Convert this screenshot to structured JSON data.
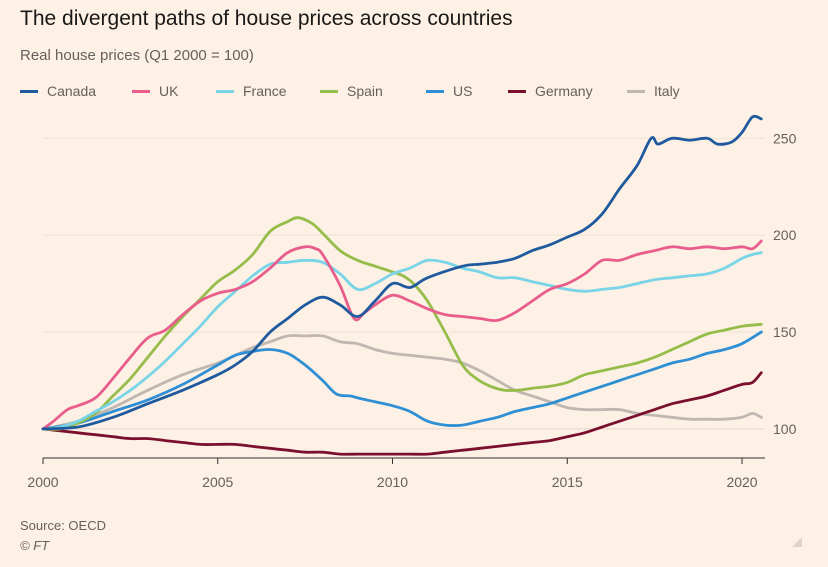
{
  "title": "The divergent paths of house prices across countries",
  "subtitle": "Real house prices (Q1 2000 = 100)",
  "source": "Source: OECD",
  "copyright": "© FT",
  "chart_data": {
    "type": "line",
    "title": "The divergent paths of house prices across countries",
    "subtitle": "Real house prices (Q1 2000 = 100)",
    "xlim": [
      2000,
      2020.6
    ],
    "ylim": [
      85,
      262
    ],
    "xticks": [
      2000,
      2005,
      2010,
      2015,
      2020
    ],
    "yticks": [
      100,
      150,
      200,
      250
    ],
    "grid": true,
    "legend_position": "top",
    "series": [
      {
        "name": "Canada",
        "color": "#1f5a9e",
        "points": [
          [
            2000,
            100
          ],
          [
            2001,
            101
          ],
          [
            2002,
            106
          ],
          [
            2003,
            113
          ],
          [
            2004,
            120
          ],
          [
            2005,
            128
          ],
          [
            2005.5,
            133
          ],
          [
            2006,
            140
          ],
          [
            2006.5,
            150
          ],
          [
            2007,
            157
          ],
          [
            2007.5,
            164
          ],
          [
            2008,
            168
          ],
          [
            2008.5,
            164
          ],
          [
            2009,
            158
          ],
          [
            2009.5,
            166
          ],
          [
            2010,
            175
          ],
          [
            2010.5,
            173
          ],
          [
            2011,
            178
          ],
          [
            2012,
            184
          ],
          [
            2012.5,
            185
          ],
          [
            2013,
            186
          ],
          [
            2013.5,
            188
          ],
          [
            2014,
            192
          ],
          [
            2014.5,
            195
          ],
          [
            2015,
            199
          ],
          [
            2015.5,
            203
          ],
          [
            2016,
            211
          ],
          [
            2016.5,
            224
          ],
          [
            2017,
            236
          ],
          [
            2017.4,
            250
          ],
          [
            2017.6,
            247
          ],
          [
            2018,
            250
          ],
          [
            2018.5,
            249
          ],
          [
            2019,
            250
          ],
          [
            2019.3,
            247
          ],
          [
            2019.7,
            248
          ],
          [
            2020,
            253
          ],
          [
            2020.3,
            261
          ],
          [
            2020.55,
            260
          ]
        ]
      },
      {
        "name": "UK",
        "color": "#e95d8c",
        "points": [
          [
            2000,
            100
          ],
          [
            2000.3,
            104
          ],
          [
            2000.7,
            110
          ],
          [
            2001,
            112
          ],
          [
            2001.5,
            116
          ],
          [
            2002,
            126
          ],
          [
            2002.5,
            137
          ],
          [
            2003,
            147
          ],
          [
            2003.5,
            151
          ],
          [
            2004,
            159
          ],
          [
            2004.5,
            166
          ],
          [
            2005,
            170
          ],
          [
            2005.5,
            172
          ],
          [
            2006,
            176
          ],
          [
            2006.5,
            183
          ],
          [
            2007,
            191
          ],
          [
            2007.5,
            194
          ],
          [
            2007.8,
            193
          ],
          [
            2008,
            190
          ],
          [
            2008.5,
            174
          ],
          [
            2008.9,
            157
          ],
          [
            2009.2,
            160
          ],
          [
            2009.5,
            164
          ],
          [
            2010,
            169
          ],
          [
            2010.5,
            166
          ],
          [
            2011,
            162
          ],
          [
            2011.5,
            159
          ],
          [
            2012,
            158
          ],
          [
            2012.5,
            157
          ],
          [
            2013,
            156
          ],
          [
            2013.5,
            160
          ],
          [
            2014,
            166
          ],
          [
            2014.5,
            172
          ],
          [
            2015,
            175
          ],
          [
            2015.5,
            180
          ],
          [
            2016,
            187
          ],
          [
            2016.5,
            187
          ],
          [
            2017,
            190
          ],
          [
            2017.5,
            192
          ],
          [
            2018,
            194
          ],
          [
            2018.5,
            193
          ],
          [
            2019,
            194
          ],
          [
            2019.5,
            193
          ],
          [
            2020,
            194
          ],
          [
            2020.3,
            193
          ],
          [
            2020.55,
            197
          ]
        ]
      },
      {
        "name": "France",
        "color": "#78d4e6",
        "points": [
          [
            2000,
            100
          ],
          [
            2000.5,
            101
          ],
          [
            2001,
            104
          ],
          [
            2001.5,
            109
          ],
          [
            2002,
            114
          ],
          [
            2002.5,
            120
          ],
          [
            2003,
            127
          ],
          [
            2003.5,
            135
          ],
          [
            2004,
            144
          ],
          [
            2004.5,
            153
          ],
          [
            2005,
            163
          ],
          [
            2005.5,
            171
          ],
          [
            2006,
            179
          ],
          [
            2006.5,
            185
          ],
          [
            2007,
            186
          ],
          [
            2007.5,
            187
          ],
          [
            2008,
            186
          ],
          [
            2008.5,
            180
          ],
          [
            2009,
            172
          ],
          [
            2009.5,
            175
          ],
          [
            2010,
            180
          ],
          [
            2010.5,
            183
          ],
          [
            2011,
            187
          ],
          [
            2011.5,
            186
          ],
          [
            2012,
            183
          ],
          [
            2012.5,
            181
          ],
          [
            2013,
            178
          ],
          [
            2013.5,
            178
          ],
          [
            2014,
            176
          ],
          [
            2014.5,
            174
          ],
          [
            2015,
            172
          ],
          [
            2015.5,
            171
          ],
          [
            2016,
            172
          ],
          [
            2016.5,
            173
          ],
          [
            2017,
            175
          ],
          [
            2017.5,
            177
          ],
          [
            2018,
            178
          ],
          [
            2018.5,
            179
          ],
          [
            2019,
            180
          ],
          [
            2019.5,
            183
          ],
          [
            2020,
            188
          ],
          [
            2020.3,
            190
          ],
          [
            2020.55,
            191
          ]
        ]
      },
      {
        "name": "Spain",
        "color": "#96bc4a",
        "points": [
          [
            2000,
            100
          ],
          [
            2000.5,
            100
          ],
          [
            2001,
            103
          ],
          [
            2001.5,
            108
          ],
          [
            2002,
            117
          ],
          [
            2002.5,
            126
          ],
          [
            2003,
            137
          ],
          [
            2003.5,
            148
          ],
          [
            2004,
            158
          ],
          [
            2004.5,
            167
          ],
          [
            2005,
            176
          ],
          [
            2005.5,
            182
          ],
          [
            2006,
            190
          ],
          [
            2006.5,
            202
          ],
          [
            2007,
            207
          ],
          [
            2007.3,
            209
          ],
          [
            2007.7,
            206
          ],
          [
            2008,
            201
          ],
          [
            2008.5,
            192
          ],
          [
            2009,
            187
          ],
          [
            2009.5,
            184
          ],
          [
            2010,
            181
          ],
          [
            2010.3,
            179
          ],
          [
            2010.6,
            175
          ],
          [
            2011,
            166
          ],
          [
            2011.5,
            150
          ],
          [
            2012,
            133
          ],
          [
            2012.4,
            126
          ],
          [
            2012.8,
            122
          ],
          [
            2013.2,
            120
          ],
          [
            2013.6,
            120
          ],
          [
            2014,
            121
          ],
          [
            2014.5,
            122
          ],
          [
            2015,
            124
          ],
          [
            2015.5,
            128
          ],
          [
            2016,
            130
          ],
          [
            2016.5,
            132
          ],
          [
            2017,
            134
          ],
          [
            2017.5,
            137
          ],
          [
            2018,
            141
          ],
          [
            2018.5,
            145
          ],
          [
            2019,
            149
          ],
          [
            2019.5,
            151
          ],
          [
            2020,
            153
          ],
          [
            2020.55,
            154
          ]
        ]
      },
      {
        "name": "US",
        "color": "#2f8fd4",
        "points": [
          [
            2000,
            100
          ],
          [
            2001,
            103
          ],
          [
            2002,
            109
          ],
          [
            2003,
            115
          ],
          [
            2004,
            123
          ],
          [
            2005,
            133
          ],
          [
            2005.5,
            138
          ],
          [
            2006,
            140
          ],
          [
            2006.5,
            141
          ],
          [
            2007,
            139
          ],
          [
            2007.5,
            133
          ],
          [
            2008,
            125
          ],
          [
            2008.4,
            118
          ],
          [
            2008.8,
            117
          ],
          [
            2009,
            116
          ],
          [
            2009.5,
            114
          ],
          [
            2010,
            112
          ],
          [
            2010.5,
            109
          ],
          [
            2011,
            104
          ],
          [
            2011.5,
            102
          ],
          [
            2012,
            102
          ],
          [
            2012.5,
            104
          ],
          [
            2013,
            106
          ],
          [
            2013.5,
            109
          ],
          [
            2014,
            111
          ],
          [
            2014.5,
            113
          ],
          [
            2015,
            116
          ],
          [
            2015.5,
            119
          ],
          [
            2016,
            122
          ],
          [
            2016.5,
            125
          ],
          [
            2017,
            128
          ],
          [
            2017.5,
            131
          ],
          [
            2018,
            134
          ],
          [
            2018.5,
            136
          ],
          [
            2019,
            139
          ],
          [
            2019.5,
            141
          ],
          [
            2020,
            144
          ],
          [
            2020.55,
            150
          ]
        ]
      },
      {
        "name": "Germany",
        "color": "#7a0f2e",
        "points": [
          [
            2000,
            100
          ],
          [
            2000.5,
            99
          ],
          [
            2001,
            98
          ],
          [
            2001.5,
            97
          ],
          [
            2002,
            96
          ],
          [
            2002.5,
            95
          ],
          [
            2003,
            95
          ],
          [
            2003.5,
            94
          ],
          [
            2004,
            93
          ],
          [
            2004.5,
            92
          ],
          [
            2005,
            92
          ],
          [
            2005.5,
            92
          ],
          [
            2006,
            91
          ],
          [
            2006.5,
            90
          ],
          [
            2007,
            89
          ],
          [
            2007.5,
            88
          ],
          [
            2008,
            88
          ],
          [
            2008.5,
            87
          ],
          [
            2009,
            87
          ],
          [
            2009.5,
            87
          ],
          [
            2010,
            87
          ],
          [
            2010.5,
            87
          ],
          [
            2011,
            87
          ],
          [
            2011.5,
            88
          ],
          [
            2012,
            89
          ],
          [
            2012.5,
            90
          ],
          [
            2013,
            91
          ],
          [
            2013.5,
            92
          ],
          [
            2014,
            93
          ],
          [
            2014.5,
            94
          ],
          [
            2015,
            96
          ],
          [
            2015.5,
            98
          ],
          [
            2016,
            101
          ],
          [
            2016.5,
            104
          ],
          [
            2017,
            107
          ],
          [
            2017.5,
            110
          ],
          [
            2018,
            113
          ],
          [
            2018.5,
            115
          ],
          [
            2019,
            117
          ],
          [
            2019.5,
            120
          ],
          [
            2020,
            123
          ],
          [
            2020.3,
            124
          ],
          [
            2020.55,
            129
          ]
        ]
      },
      {
        "name": "Italy",
        "color": "#bfb7b0",
        "points": [
          [
            2000,
            100
          ],
          [
            2001,
            104
          ],
          [
            2002,
            111
          ],
          [
            2003,
            120
          ],
          [
            2004,
            128
          ],
          [
            2005,
            134
          ],
          [
            2005.5,
            138
          ],
          [
            2006,
            142
          ],
          [
            2006.5,
            145
          ],
          [
            2007,
            148
          ],
          [
            2007.5,
            148
          ],
          [
            2008,
            148
          ],
          [
            2008.5,
            145
          ],
          [
            2009,
            144
          ],
          [
            2009.5,
            141
          ],
          [
            2010,
            139
          ],
          [
            2010.5,
            138
          ],
          [
            2011,
            137
          ],
          [
            2011.5,
            136
          ],
          [
            2012,
            134
          ],
          [
            2012.5,
            130
          ],
          [
            2013,
            125
          ],
          [
            2013.5,
            120
          ],
          [
            2014,
            117
          ],
          [
            2014.5,
            114
          ],
          [
            2015,
            111
          ],
          [
            2015.5,
            110
          ],
          [
            2016,
            110
          ],
          [
            2016.5,
            110
          ],
          [
            2017,
            108
          ],
          [
            2017.5,
            107
          ],
          [
            2018,
            106
          ],
          [
            2018.5,
            105
          ],
          [
            2019,
            105
          ],
          [
            2019.5,
            105
          ],
          [
            2020,
            106
          ],
          [
            2020.3,
            108
          ],
          [
            2020.55,
            106
          ]
        ]
      }
    ]
  }
}
